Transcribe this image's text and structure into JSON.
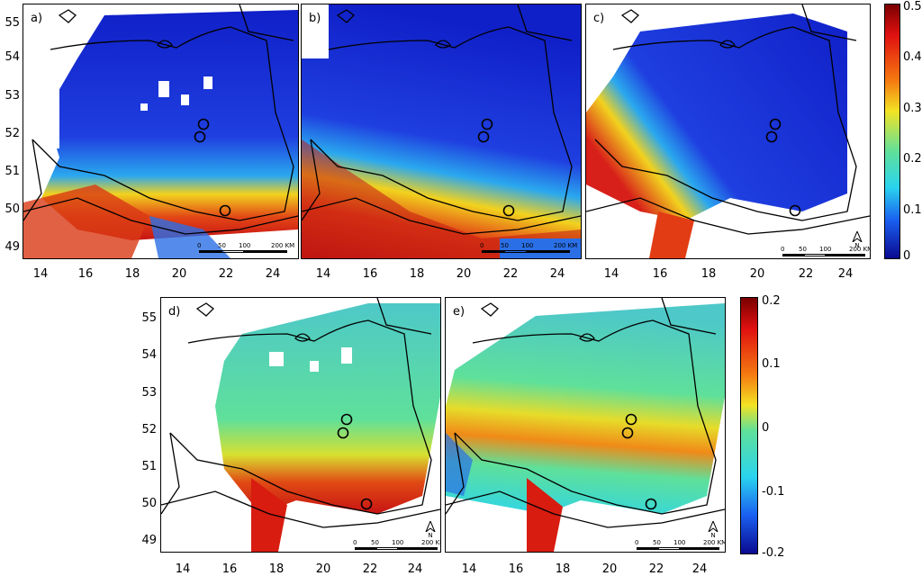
{
  "maps": [
    {
      "label": "a)"
    },
    {
      "label": "b)"
    },
    {
      "label": "c)"
    },
    {
      "label": "d)"
    },
    {
      "label": "e)"
    }
  ],
  "lon_ticks": [
    "14",
    "16",
    "18",
    "20",
    "22",
    "24"
  ],
  "lat_ticks": [
    "55",
    "54",
    "53",
    "52",
    "51",
    "50",
    "49"
  ],
  "colorbar_top": {
    "ticks": [
      "0.5",
      "0.4",
      "0.3",
      "0.2",
      "0.1",
      "0"
    ],
    "range": [
      0,
      0.5
    ]
  },
  "colorbar_bottom": {
    "ticks": [
      "0.2",
      "0.1",
      "0",
      "-0.1",
      "-0.2"
    ],
    "range": [
      -0.2,
      0.2
    ]
  },
  "scale_bar": {
    "l0": "0",
    "l1": "50",
    "l2": "100",
    "l3": "200 KM"
  },
  "north_arrow": {
    "letter": "N"
  },
  "colors": {
    "blue": "#1a2fd6",
    "cyan": "#2ad4ee",
    "green": "#5fe09a",
    "yellow": "#f2e324",
    "red": "#d81c10"
  }
}
